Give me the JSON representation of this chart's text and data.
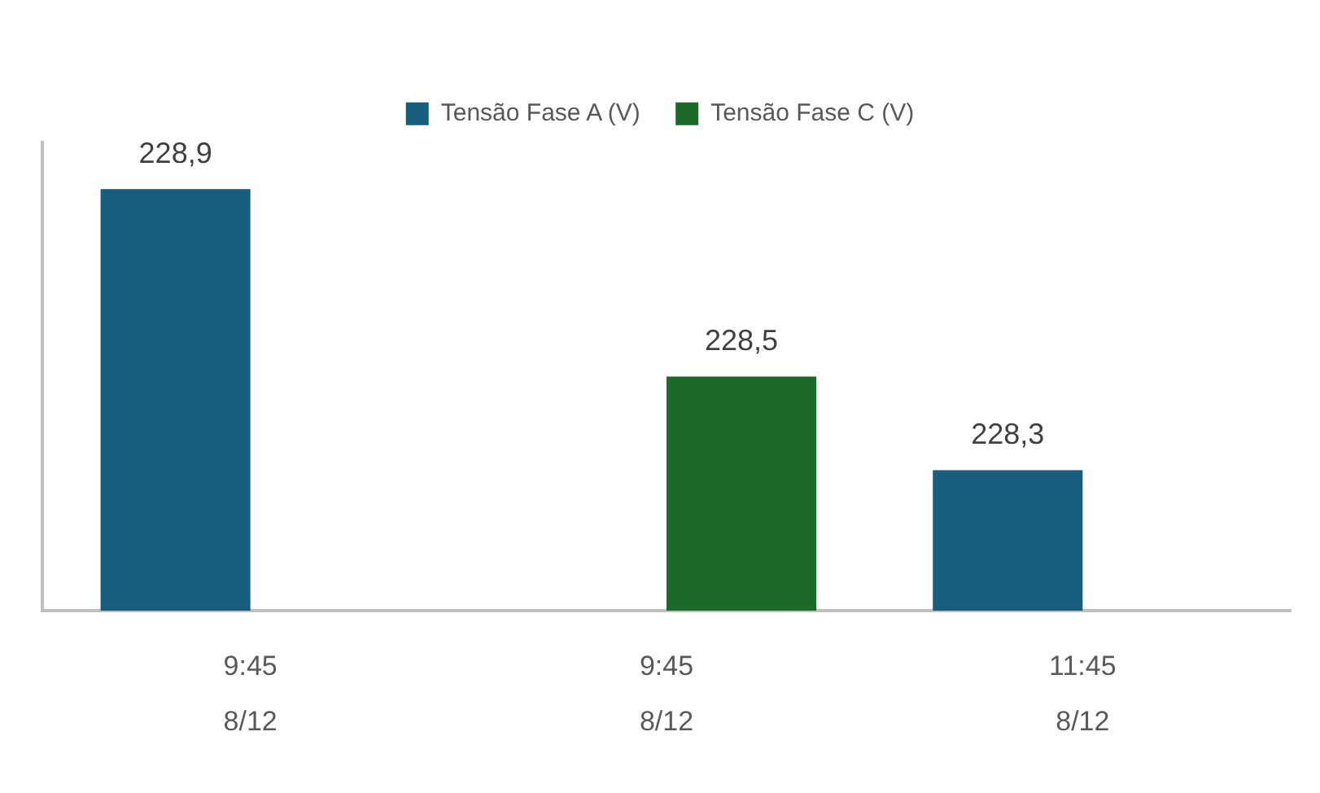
{
  "chart_data": {
    "type": "bar",
    "categories": [
      "9:45\n8/12",
      "9:45\n8/12",
      "11:45\n8/12"
    ],
    "series": [
      {
        "name": "Tensão Fase A (V)",
        "color": "#175e7e",
        "values": [
          228.9,
          null,
          228.3
        ],
        "value_labels": [
          "228,9",
          null,
          "228,3"
        ]
      },
      {
        "name": "Tensão Fase C (V)",
        "color": "#1c6a27",
        "values": [
          null,
          228.5,
          null
        ],
        "value_labels": [
          null,
          "228,5",
          null
        ]
      }
    ],
    "ylim": [
      228.0,
      229.0
    ],
    "tick_labels": "x",
    "grid": false,
    "legend": "top"
  }
}
